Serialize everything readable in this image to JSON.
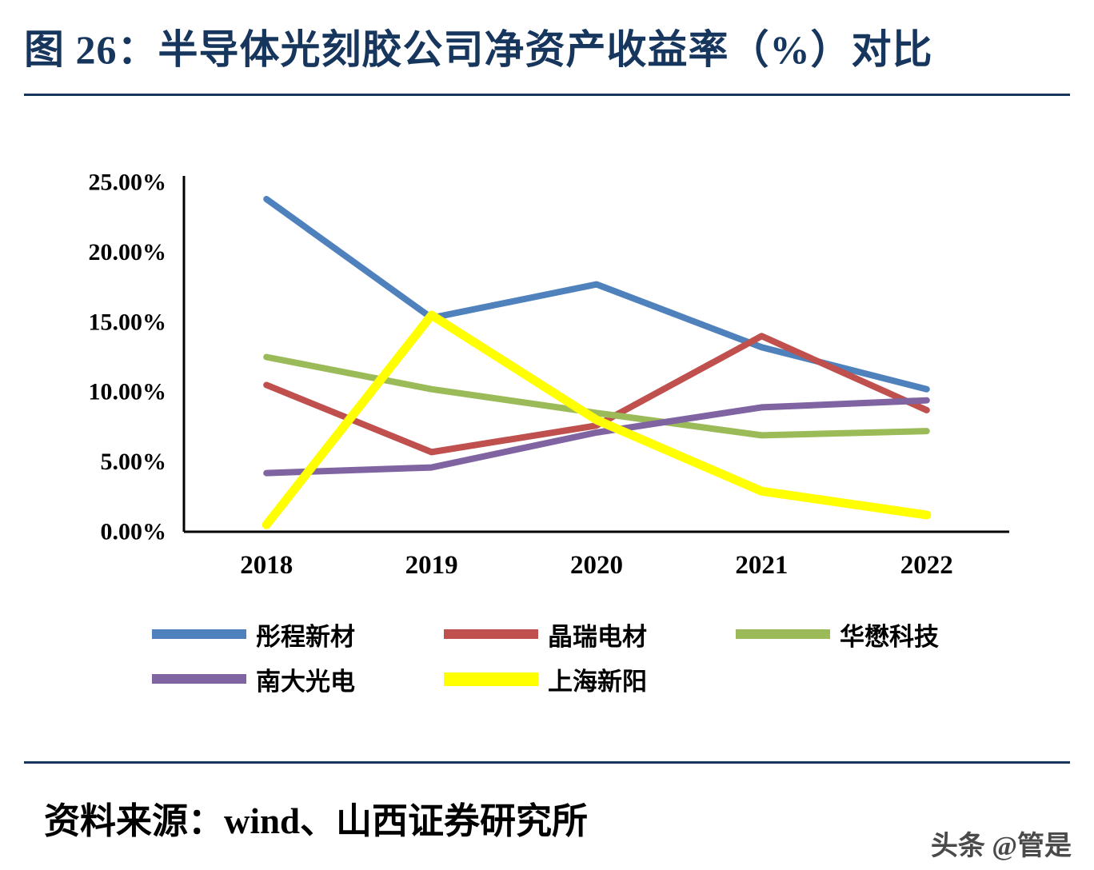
{
  "page": {
    "title": "图 26：半导体光刻胶公司净资产收益率（%）对比",
    "source": "资料来源：wind、山西证券研究所",
    "watermark": "头条 @管是",
    "accent_color": "#17365D"
  },
  "chart_data": {
    "type": "line",
    "title": "半导体光刻胶公司净资产收益率（%）对比",
    "categories": [
      "2018",
      "2019",
      "2020",
      "2021",
      "2022"
    ],
    "series": [
      {
        "name": "彤程新材",
        "color": "#4F81BD",
        "width": 8,
        "values": [
          23.8,
          15.3,
          17.7,
          13.2,
          10.2
        ]
      },
      {
        "name": "晶瑞电材",
        "color": "#C0504D",
        "width": 8,
        "values": [
          10.5,
          5.7,
          7.6,
          14.0,
          8.7
        ]
      },
      {
        "name": "华懋科技",
        "color": "#9BBB59",
        "width": 8,
        "values": [
          12.5,
          10.2,
          8.5,
          6.9,
          7.2
        ]
      },
      {
        "name": "南大光电",
        "color": "#8064A2",
        "width": 8,
        "values": [
          4.2,
          4.6,
          7.1,
          8.9,
          9.4
        ]
      },
      {
        "name": "上海新阳",
        "color": "#FFFF00",
        "width": 11,
        "values": [
          0.5,
          15.5,
          8.0,
          2.9,
          1.2
        ]
      }
    ],
    "xlabel": "",
    "ylabel": "",
    "ylim": [
      0,
      25
    ],
    "ytick_step": 5,
    "ytick_labels": [
      "0.00%",
      "5.00%",
      "10.00%",
      "15.00%",
      "20.00%",
      "25.00%"
    ],
    "grid": false,
    "legend_position": "bottom"
  }
}
